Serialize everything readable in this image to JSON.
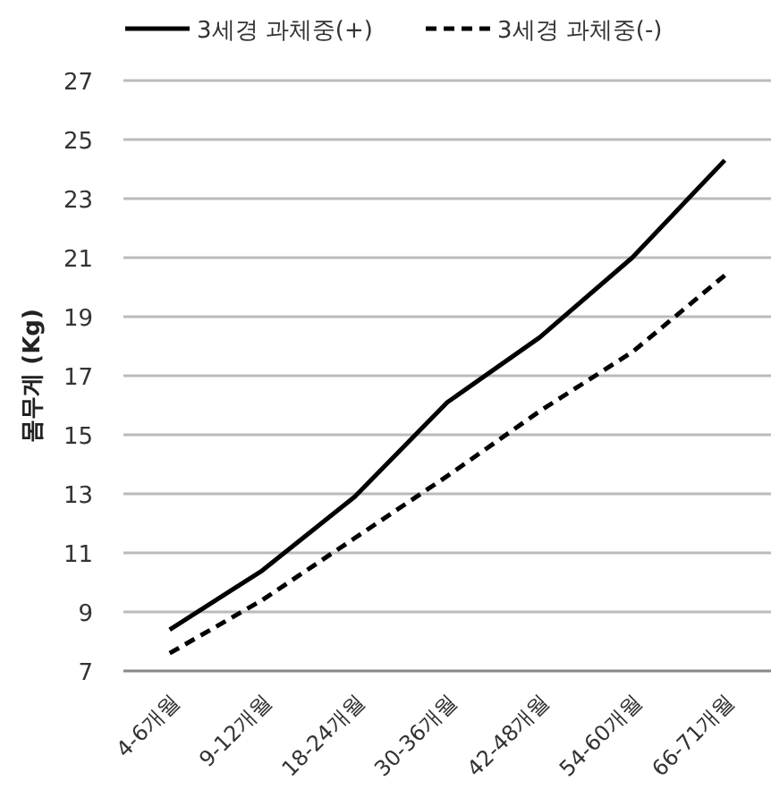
{
  "chart_data": {
    "type": "line",
    "ylabel": "몸무게 (Kg)",
    "categories": [
      "4-6개월",
      "9-12개월",
      "18-24개월",
      "30-36개월",
      "42-48개월",
      "54-60개월",
      "66-71개월"
    ],
    "series": [
      {
        "name": "3세경 과체중(+)",
        "color": "#000000",
        "line_style": "solid",
        "values": [
          8.4,
          10.4,
          12.9,
          16.1,
          18.3,
          21.0,
          24.3
        ]
      },
      {
        "name": "3세경 과체중(-)",
        "color": "#000000",
        "line_style": "dashed",
        "values": [
          7.6,
          9.4,
          11.5,
          13.6,
          15.8,
          17.8,
          20.4
        ]
      }
    ],
    "ylim": [
      7,
      27
    ],
    "yticks": [
      7,
      9,
      11,
      13,
      15,
      17,
      19,
      21,
      23,
      25,
      27
    ],
    "grid": "y",
    "legend": "top",
    "marker": "none"
  }
}
